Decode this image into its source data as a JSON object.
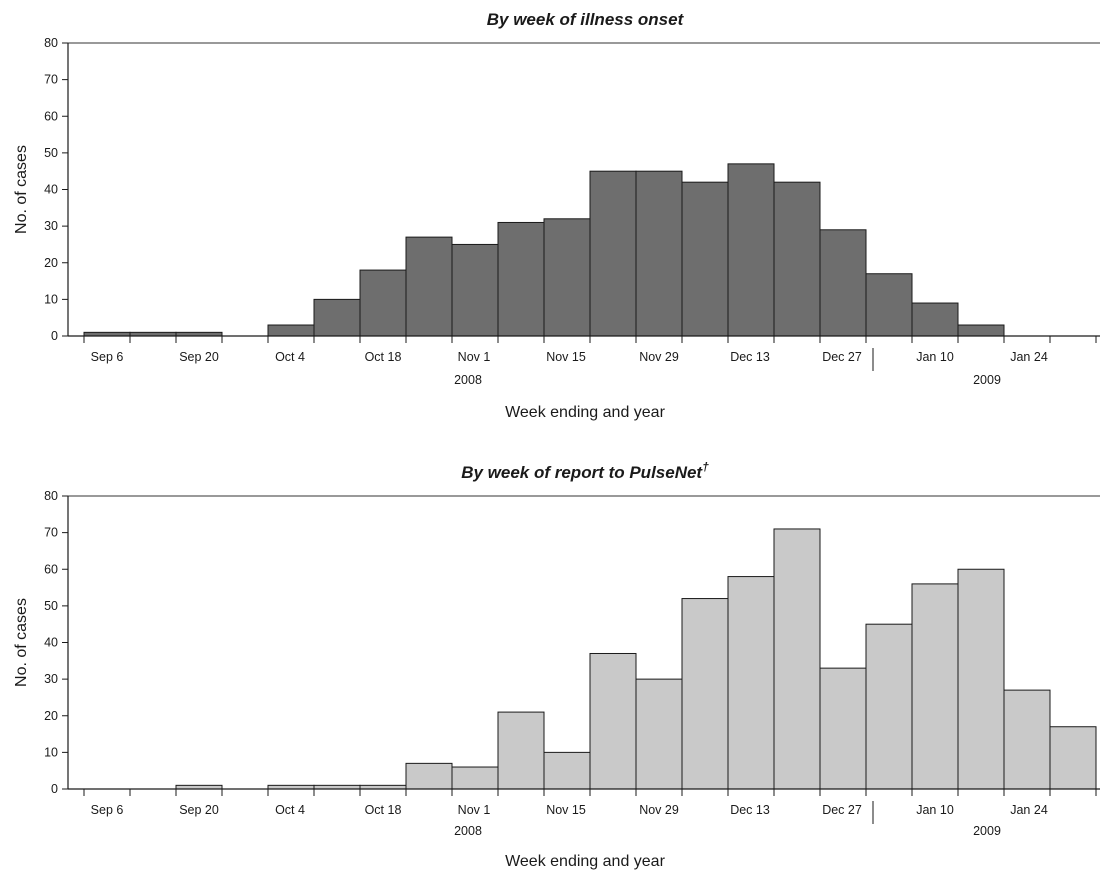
{
  "chart_data": [
    {
      "type": "bar",
      "title": "By week of illness onset",
      "xlabel": "Week ending and year",
      "ylabel": "No. of cases",
      "ylim": [
        0,
        80
      ],
      "yticks": [
        0,
        10,
        20,
        30,
        40,
        50,
        60,
        70,
        80
      ],
      "grid": false,
      "bar_color": "#6e6e6e",
      "tick_labels": [
        "Sep 6",
        "Sep 20",
        "Oct 4",
        "Oct 18",
        "Nov 1",
        "Nov 15",
        "Nov 29",
        "Dec 13",
        "Dec 27",
        "Jan 10",
        "Jan 24"
      ],
      "year_labels": [
        "2008",
        "2009"
      ],
      "categories": [
        "Sep 6",
        "Sep 13",
        "Sep 20",
        "Sep 27",
        "Oct 4",
        "Oct 11",
        "Oct 18",
        "Oct 25",
        "Nov 1",
        "Nov 8",
        "Nov 15",
        "Nov 22",
        "Nov 29",
        "Dec 6",
        "Dec 13",
        "Dec 20",
        "Dec 27",
        "Jan 3",
        "Jan 10",
        "Jan 17",
        "Jan 24",
        "Jan 31"
      ],
      "values": [
        1,
        1,
        1,
        0,
        3,
        10,
        18,
        27,
        25,
        31,
        32,
        45,
        45,
        42,
        47,
        42,
        29,
        17,
        9,
        3,
        0,
        0
      ]
    },
    {
      "type": "bar",
      "title": "By week of report to PulseNet",
      "title_mark": "†",
      "xlabel": "Week ending and year",
      "ylabel": "No. of cases",
      "ylim": [
        0,
        80
      ],
      "yticks": [
        0,
        10,
        20,
        30,
        40,
        50,
        60,
        70,
        80
      ],
      "grid": false,
      "bar_color": "#c9c9c9",
      "tick_labels": [
        "Sep 6",
        "Sep 20",
        "Oct 4",
        "Oct 18",
        "Nov 1",
        "Nov 15",
        "Nov 29",
        "Dec 13",
        "Dec 27",
        "Jan 10",
        "Jan 24"
      ],
      "year_labels": [
        "2008",
        "2009"
      ],
      "categories": [
        "Sep 6",
        "Sep 13",
        "Sep 20",
        "Sep 27",
        "Oct 4",
        "Oct 11",
        "Oct 18",
        "Oct 25",
        "Nov 1",
        "Nov 8",
        "Nov 15",
        "Nov 22",
        "Nov 29",
        "Dec 6",
        "Dec 13",
        "Dec 20",
        "Dec 27",
        "Jan 3",
        "Jan 10",
        "Jan 17",
        "Jan 24",
        "Jan 31"
      ],
      "values": [
        0,
        0,
        1,
        0,
        1,
        1,
        1,
        7,
        6,
        21,
        10,
        37,
        30,
        52,
        58,
        71,
        33,
        45,
        56,
        60,
        27,
        17
      ]
    }
  ]
}
